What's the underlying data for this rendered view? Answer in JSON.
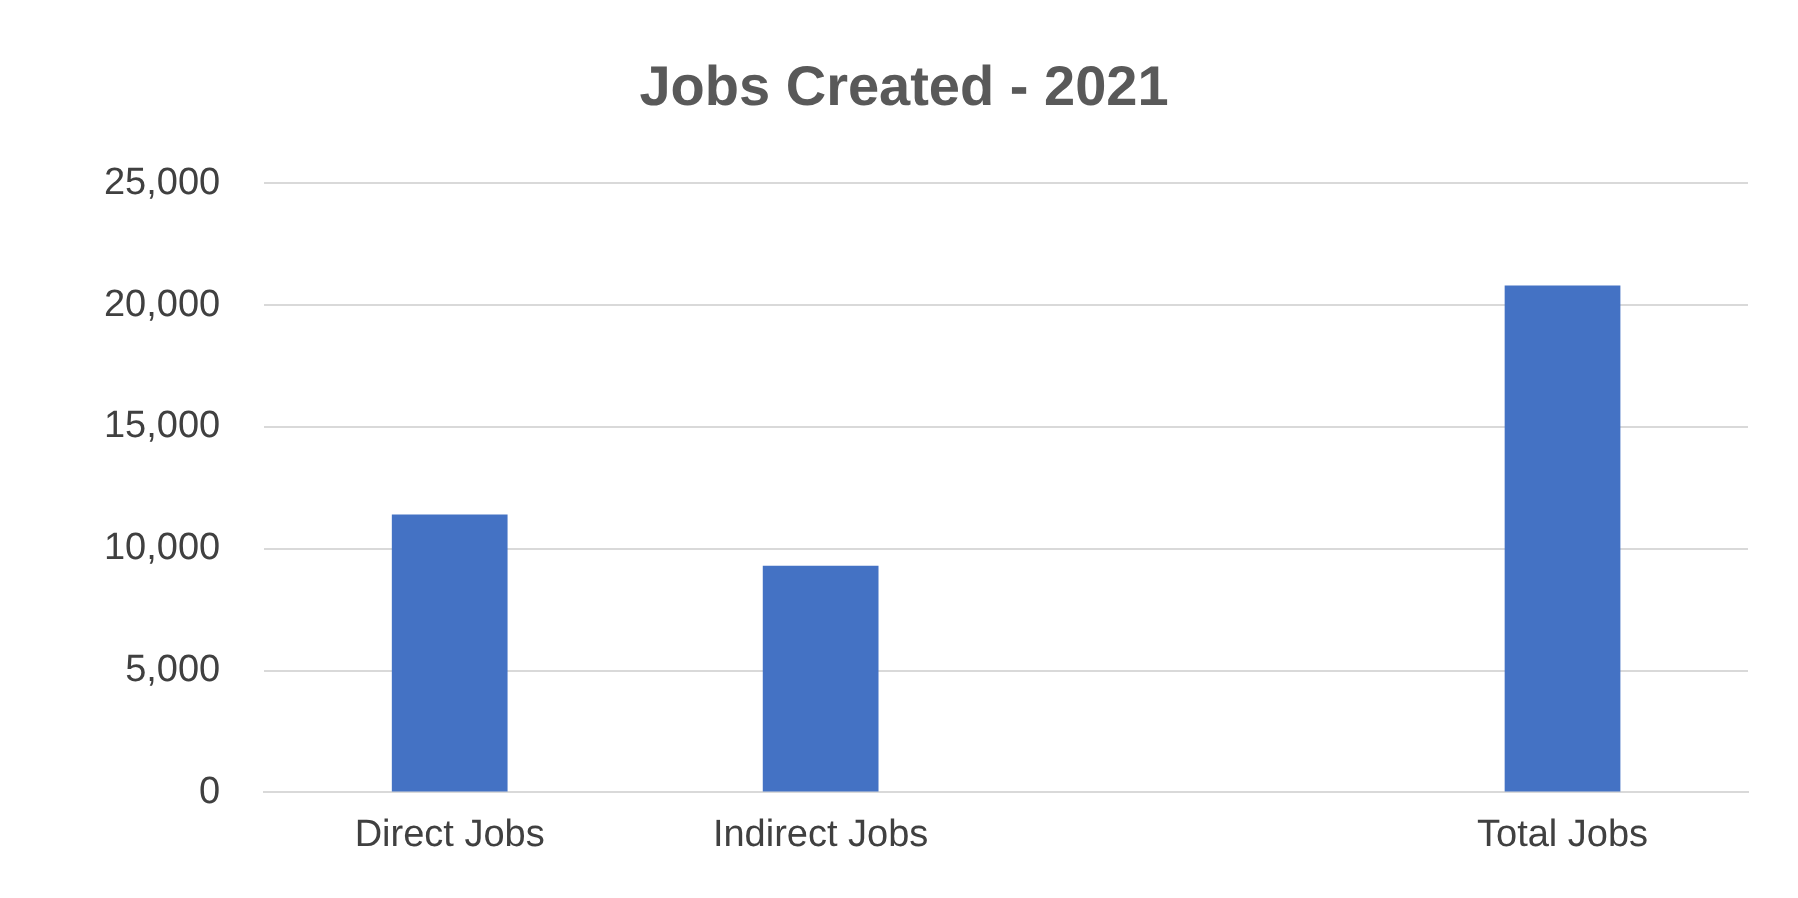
{
  "chart_data": {
    "type": "bar",
    "title": "Jobs Created - 2021",
    "categories": [
      "Direct Jobs",
      "Indirect Jobs",
      null,
      "Total Jobs"
    ],
    "values": [
      11400,
      9300,
      null,
      20800
    ],
    "color": "#4472c4",
    "ylim": [
      0,
      25000
    ],
    "yticks": [
      {
        "value": 0,
        "label": "0"
      },
      {
        "value": 5000,
        "label": "5,000"
      },
      {
        "value": 10000,
        "label": "10,000"
      },
      {
        "value": 15000,
        "label": "15,000"
      },
      {
        "value": 20000,
        "label": "20,000"
      },
      {
        "value": 25000,
        "label": "25,000"
      }
    ],
    "grid": "y"
  }
}
